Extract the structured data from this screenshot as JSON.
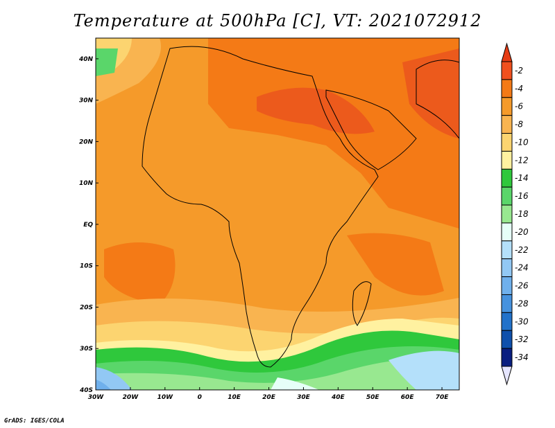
{
  "title": "Temperature at 500hPa [C], VT: 2021072912",
  "credit": "GrADS: IGES/COLA",
  "map": {
    "lon_range": [
      -30,
      75
    ],
    "lat_range": [
      -40,
      45
    ],
    "x_ticks": [
      {
        "lon": -30,
        "label": "30W"
      },
      {
        "lon": -20,
        "label": "20W"
      },
      {
        "lon": -10,
        "label": "10W"
      },
      {
        "lon": 0,
        "label": "0"
      },
      {
        "lon": 10,
        "label": "10E"
      },
      {
        "lon": 20,
        "label": "20E"
      },
      {
        "lon": 30,
        "label": "30E"
      },
      {
        "lon": 40,
        "label": "40E"
      },
      {
        "lon": 50,
        "label": "50E"
      },
      {
        "lon": 60,
        "label": "60E"
      },
      {
        "lon": 70,
        "label": "70E"
      }
    ],
    "y_ticks": [
      {
        "lat": 40,
        "label": "40N"
      },
      {
        "lat": 30,
        "label": "30N"
      },
      {
        "lat": 20,
        "label": "20N"
      },
      {
        "lat": 10,
        "label": "10N"
      },
      {
        "lat": 0,
        "label": "EQ"
      },
      {
        "lat": -10,
        "label": "10S"
      },
      {
        "lat": -20,
        "label": "20S"
      },
      {
        "lat": -30,
        "label": "30S"
      },
      {
        "lat": -40,
        "label": "40S"
      }
    ]
  },
  "colorbar": {
    "levels": [
      "-2",
      "-4",
      "-6",
      "-8",
      "-10",
      "-12",
      "-14",
      "-16",
      "-18",
      "-20",
      "-22",
      "-24",
      "-26",
      "-28",
      "-30",
      "-32",
      "-34"
    ],
    "colors": [
      "#f0501e",
      "#f47a16",
      "#f59a2a",
      "#f9b450",
      "#fcd470",
      "#fff1a0",
      "#2fc83c",
      "#5ad66a",
      "#98e890",
      "#e6fff8",
      "#b4e0fa",
      "#92c8f4",
      "#6fb0ec",
      "#4692de",
      "#2272ca",
      "#0f50ac",
      "#0a1e80"
    ],
    "top_color": "#e63c14",
    "bottom_color": "#e6e6ff"
  }
}
